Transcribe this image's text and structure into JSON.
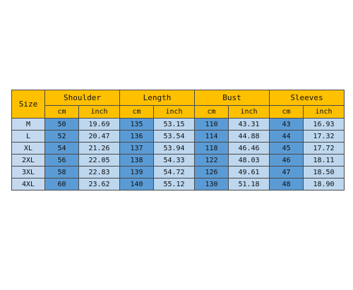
{
  "table": {
    "size_label": "Size",
    "groups": [
      "Shoulder",
      "Length",
      "Bust",
      "Sleeves"
    ],
    "units": [
      "cm",
      "inch"
    ],
    "rows": [
      {
        "size": "M",
        "cells": [
          "50",
          "19.69",
          "135",
          "53.15",
          "110",
          "43.31",
          "43",
          "16.93"
        ]
      },
      {
        "size": "L",
        "cells": [
          "52",
          "20.47",
          "136",
          "53.54",
          "114",
          "44.88",
          "44",
          "17.32"
        ]
      },
      {
        "size": "XL",
        "cells": [
          "54",
          "21.26",
          "137",
          "53.94",
          "118",
          "46.46",
          "45",
          "17.72"
        ]
      },
      {
        "size": "2XL",
        "cells": [
          "56",
          "22.05",
          "138",
          "54.33",
          "122",
          "48.03",
          "46",
          "18.11"
        ]
      },
      {
        "size": "3XL",
        "cells": [
          "58",
          "22.83",
          "139",
          "54.72",
          "126",
          "49.61",
          "47",
          "18.50"
        ]
      },
      {
        "size": "4XL",
        "cells": [
          "60",
          "23.62",
          "140",
          "55.12",
          "130",
          "51.18",
          "48",
          "18.90"
        ]
      }
    ]
  },
  "colors": {
    "header": "#ffc000",
    "size_column": "#c4d9ef",
    "cm_column": "#5b9bd5",
    "inch_column": "#bdd7ee",
    "border": "#4a4a4a"
  }
}
